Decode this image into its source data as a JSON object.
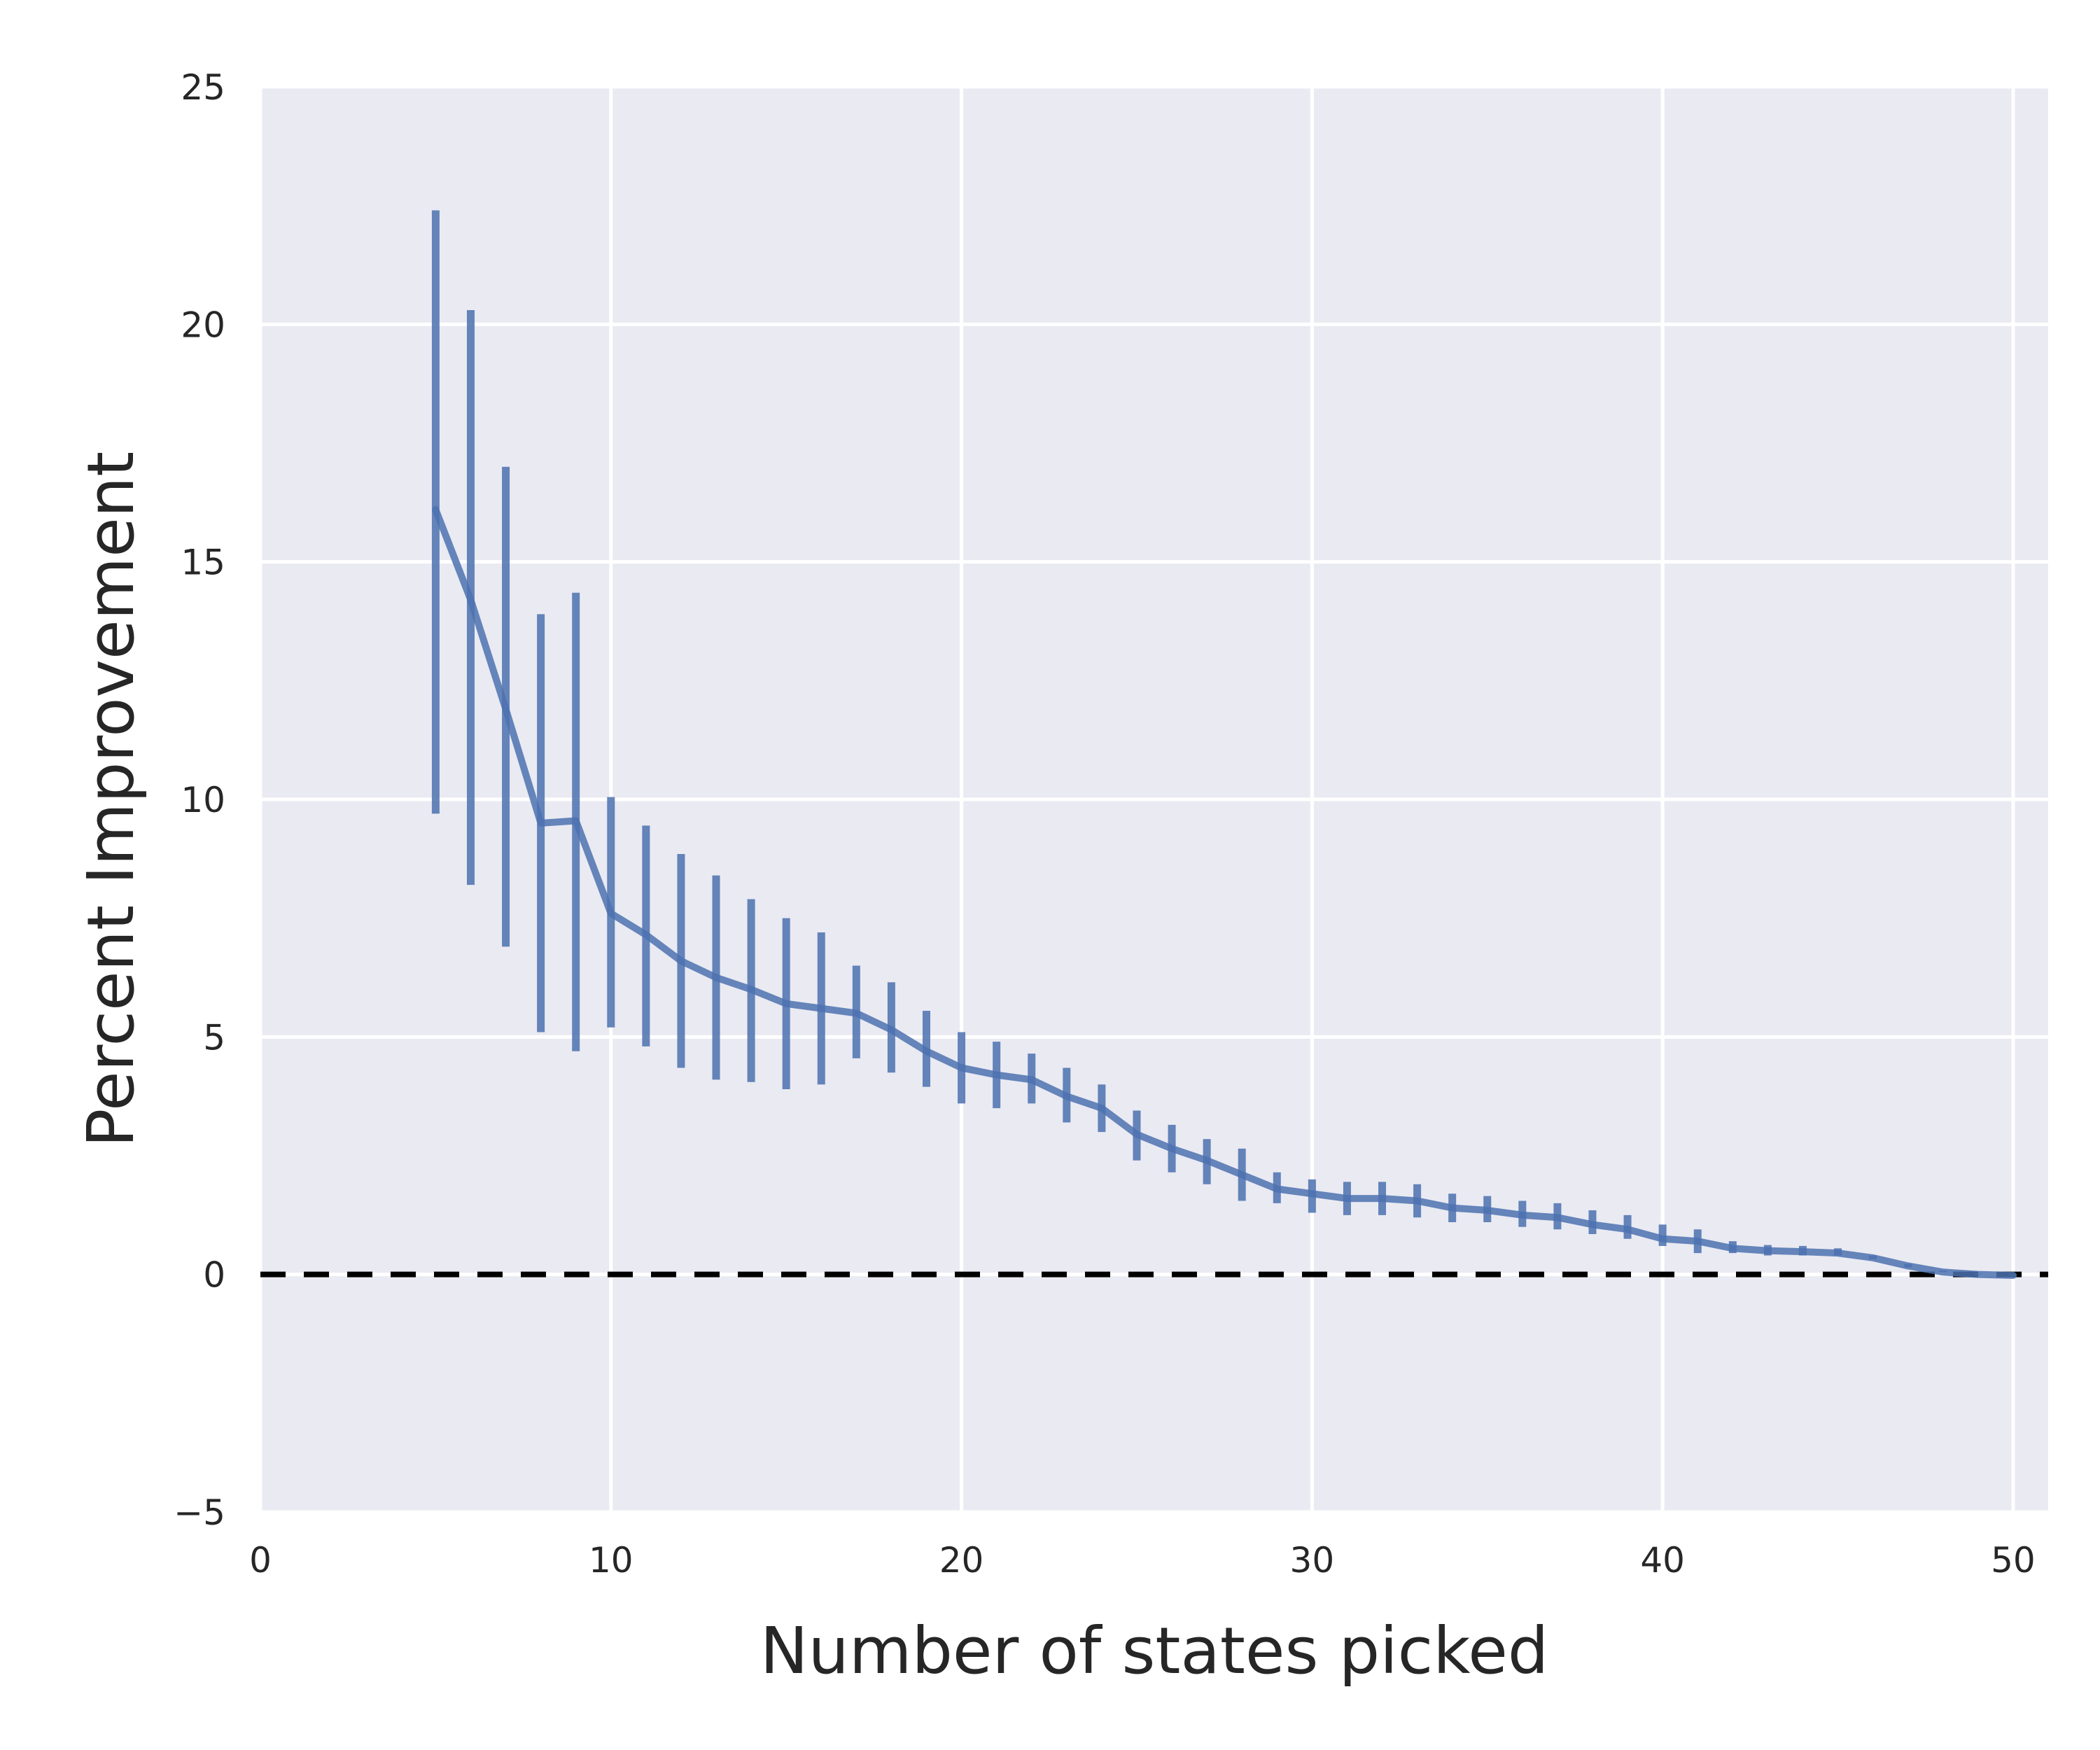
{
  "chart_data": {
    "type": "line",
    "title": "",
    "xlabel": "Number of states picked",
    "ylabel": "Percent Improvement",
    "xlim": [
      0,
      51
    ],
    "ylim": [
      -5,
      25
    ],
    "xticks": [
      0,
      10,
      20,
      30,
      40,
      50
    ],
    "yticks": [
      -5,
      0,
      5,
      10,
      15,
      20,
      25
    ],
    "xtick_labels": [
      "0",
      "10",
      "20",
      "30",
      "40",
      "50"
    ],
    "ytick_labels": [
      "−5",
      "0",
      "5",
      "10",
      "15",
      "20",
      "25"
    ],
    "grid": true,
    "background": "#eaeaf2",
    "series_color": "#4c72b0",
    "reference_line": {
      "y": 0,
      "style": "dashed",
      "color": "#000000"
    },
    "series": [
      {
        "x": [
          5,
          6,
          7,
          8,
          9,
          10,
          11,
          12,
          13,
          14,
          15,
          16,
          17,
          18,
          19,
          20,
          21,
          22,
          23,
          24,
          25,
          26,
          27,
          28,
          29,
          30,
          31,
          32,
          33,
          34,
          35,
          36,
          37,
          38,
          39,
          40,
          41,
          42,
          43,
          44,
          45,
          46,
          47,
          48,
          49,
          50
        ],
        "y": [
          16.1,
          14.2,
          11.9,
          9.5,
          9.55,
          7.6,
          7.15,
          6.6,
          6.25,
          6.0,
          5.7,
          5.6,
          5.5,
          5.15,
          4.7,
          4.35,
          4.2,
          4.1,
          3.75,
          3.5,
          2.95,
          2.65,
          2.4,
          2.1,
          1.8,
          1.7,
          1.6,
          1.6,
          1.55,
          1.4,
          1.35,
          1.25,
          1.2,
          1.05,
          0.95,
          0.75,
          0.7,
          0.55,
          0.5,
          0.48,
          0.45,
          0.35,
          0.18,
          0.05,
          0.0,
          -0.02
        ],
        "err_low": [
          9.7,
          8.2,
          6.9,
          5.1,
          4.7,
          5.2,
          4.8,
          4.35,
          4.1,
          4.05,
          3.9,
          4.0,
          4.55,
          4.25,
          3.95,
          3.6,
          3.5,
          3.6,
          3.2,
          3.0,
          2.4,
          2.15,
          1.9,
          1.55,
          1.5,
          1.3,
          1.25,
          1.25,
          1.2,
          1.1,
          1.1,
          1.0,
          0.95,
          0.85,
          0.75,
          0.6,
          0.45,
          0.45,
          0.4,
          0.4,
          0.4,
          0.32,
          0.15,
          0.05,
          0.0,
          -0.02
        ],
        "err_high": [
          22.4,
          20.3,
          17.0,
          13.9,
          14.35,
          10.05,
          9.45,
          8.85,
          8.4,
          7.9,
          7.5,
          7.2,
          6.5,
          6.15,
          5.55,
          5.1,
          4.9,
          4.65,
          4.35,
          4.0,
          3.45,
          3.15,
          2.85,
          2.65,
          2.15,
          2.0,
          1.95,
          1.95,
          1.9,
          1.7,
          1.65,
          1.55,
          1.5,
          1.35,
          1.25,
          1.05,
          0.95,
          0.7,
          0.62,
          0.6,
          0.55,
          0.4,
          0.22,
          0.08,
          0.02,
          0.0
        ]
      }
    ]
  }
}
